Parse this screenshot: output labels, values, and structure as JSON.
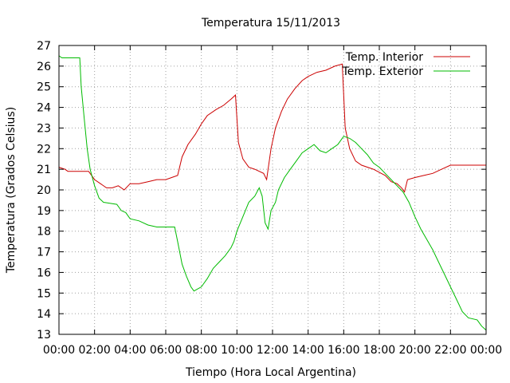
{
  "chart_data": {
    "type": "line",
    "title": "Temperatura 15/11/2013",
    "xlabel": "Tiempo (Hora Local Argentina)",
    "ylabel": "Temperatura (Grados Celsius)",
    "xlim": [
      "00:00",
      "24:00"
    ],
    "ylim": [
      13,
      27
    ],
    "xticks": [
      "00:00",
      "02:00",
      "04:00",
      "06:00",
      "08:00",
      "10:00",
      "12:00",
      "14:00",
      "16:00",
      "18:00",
      "20:00",
      "22:00",
      "00:00"
    ],
    "yticks": [
      13,
      14,
      15,
      16,
      17,
      18,
      19,
      20,
      21,
      22,
      23,
      24,
      25,
      26,
      27
    ],
    "grid": true,
    "legend_position": "top-right",
    "series": [
      {
        "name": "Temp. Interior",
        "color": "#cc0000",
        "points": [
          [
            "00:00",
            21.1
          ],
          [
            "00:20",
            21.0
          ],
          [
            "00:30",
            20.9
          ],
          [
            "01:00",
            20.9
          ],
          [
            "01:40",
            20.9
          ],
          [
            "02:00",
            20.5
          ],
          [
            "02:20",
            20.3
          ],
          [
            "02:40",
            20.1
          ],
          [
            "03:00",
            20.1
          ],
          [
            "03:20",
            20.2
          ],
          [
            "03:40",
            20.0
          ],
          [
            "04:00",
            20.3
          ],
          [
            "04:30",
            20.3
          ],
          [
            "05:00",
            20.4
          ],
          [
            "05:30",
            20.5
          ],
          [
            "06:00",
            20.5
          ],
          [
            "06:20",
            20.6
          ],
          [
            "06:40",
            20.7
          ],
          [
            "06:55",
            21.6
          ],
          [
            "07:15",
            22.2
          ],
          [
            "07:40",
            22.7
          ],
          [
            "08:00",
            23.2
          ],
          [
            "08:20",
            23.6
          ],
          [
            "08:50",
            23.9
          ],
          [
            "09:15",
            24.1
          ],
          [
            "09:40",
            24.4
          ],
          [
            "09:55",
            24.6
          ],
          [
            "10:05",
            22.3
          ],
          [
            "10:20",
            21.5
          ],
          [
            "10:40",
            21.1
          ],
          [
            "11:00",
            21.0
          ],
          [
            "11:30",
            20.8
          ],
          [
            "11:40",
            20.5
          ],
          [
            "11:55",
            22.0
          ],
          [
            "12:10",
            23.0
          ],
          [
            "12:30",
            23.8
          ],
          [
            "12:50",
            24.4
          ],
          [
            "13:15",
            24.9
          ],
          [
            "13:40",
            25.3
          ],
          [
            "14:00",
            25.5
          ],
          [
            "14:30",
            25.7
          ],
          [
            "15:00",
            25.8
          ],
          [
            "15:30",
            26.0
          ],
          [
            "15:55",
            26.1
          ],
          [
            "16:05",
            23.0
          ],
          [
            "16:20",
            22.0
          ],
          [
            "16:40",
            21.4
          ],
          [
            "17:00",
            21.2
          ],
          [
            "17:40",
            21.0
          ],
          [
            "18:20",
            20.7
          ],
          [
            "18:40",
            20.4
          ],
          [
            "19:00",
            20.3
          ],
          [
            "19:15",
            20.1
          ],
          [
            "19:25",
            19.9
          ],
          [
            "19:35",
            20.5
          ],
          [
            "20:00",
            20.6
          ],
          [
            "20:30",
            20.7
          ],
          [
            "21:00",
            20.8
          ],
          [
            "21:30",
            21.0
          ],
          [
            "22:00",
            21.2
          ],
          [
            "23:00",
            21.2
          ],
          [
            "24:00",
            21.2
          ]
        ]
      },
      {
        "name": "Temp. Exterior",
        "color": "#00bb00",
        "points": [
          [
            "00:00",
            26.5
          ],
          [
            "00:10",
            26.4
          ],
          [
            "01:10",
            26.4
          ],
          [
            "01:15",
            25.0
          ],
          [
            "01:25",
            23.5
          ],
          [
            "01:35",
            22.0
          ],
          [
            "01:45",
            21.0
          ],
          [
            "02:00",
            20.2
          ],
          [
            "02:15",
            19.6
          ],
          [
            "02:30",
            19.4
          ],
          [
            "03:15",
            19.3
          ],
          [
            "03:30",
            19.0
          ],
          [
            "03:45",
            18.9
          ],
          [
            "04:00",
            18.6
          ],
          [
            "04:30",
            18.5
          ],
          [
            "05:00",
            18.3
          ],
          [
            "05:30",
            18.2
          ],
          [
            "06:00",
            18.2
          ],
          [
            "06:30",
            18.2
          ],
          [
            "06:40",
            17.5
          ],
          [
            "06:55",
            16.4
          ],
          [
            "07:10",
            15.8
          ],
          [
            "07:25",
            15.3
          ],
          [
            "07:35",
            15.1
          ],
          [
            "08:00",
            15.3
          ],
          [
            "08:20",
            15.7
          ],
          [
            "08:40",
            16.2
          ],
          [
            "09:00",
            16.5
          ],
          [
            "09:20",
            16.8
          ],
          [
            "09:40",
            17.2
          ],
          [
            "09:50",
            17.5
          ],
          [
            "10:00",
            18.0
          ],
          [
            "10:20",
            18.7
          ],
          [
            "10:40",
            19.4
          ],
          [
            "11:00",
            19.7
          ],
          [
            "11:15",
            20.1
          ],
          [
            "11:25",
            19.7
          ],
          [
            "11:35",
            18.4
          ],
          [
            "11:45",
            18.1
          ],
          [
            "11:55",
            19.0
          ],
          [
            "12:10",
            19.4
          ],
          [
            "12:20",
            20.0
          ],
          [
            "12:40",
            20.6
          ],
          [
            "13:00",
            21.0
          ],
          [
            "13:20",
            21.4
          ],
          [
            "13:40",
            21.8
          ],
          [
            "14:00",
            22.0
          ],
          [
            "14:20",
            22.2
          ],
          [
            "14:40",
            21.9
          ],
          [
            "15:00",
            21.8
          ],
          [
            "15:20",
            22.0
          ],
          [
            "15:40",
            22.2
          ],
          [
            "16:00",
            22.6
          ],
          [
            "16:20",
            22.5
          ],
          [
            "16:40",
            22.3
          ],
          [
            "17:00",
            22.0
          ],
          [
            "17:20",
            21.7
          ],
          [
            "17:40",
            21.3
          ],
          [
            "18:00",
            21.1
          ],
          [
            "18:20",
            20.8
          ],
          [
            "18:40",
            20.5
          ],
          [
            "19:00",
            20.2
          ],
          [
            "19:20",
            19.9
          ],
          [
            "19:40",
            19.4
          ],
          [
            "20:00",
            18.7
          ],
          [
            "20:20",
            18.1
          ],
          [
            "20:40",
            17.6
          ],
          [
            "21:00",
            17.1
          ],
          [
            "21:20",
            16.5
          ],
          [
            "21:40",
            15.9
          ],
          [
            "22:00",
            15.3
          ],
          [
            "22:20",
            14.7
          ],
          [
            "22:40",
            14.1
          ],
          [
            "23:00",
            13.8
          ],
          [
            "23:30",
            13.7
          ],
          [
            "23:45",
            13.4
          ],
          [
            "24:00",
            13.2
          ]
        ]
      }
    ]
  }
}
